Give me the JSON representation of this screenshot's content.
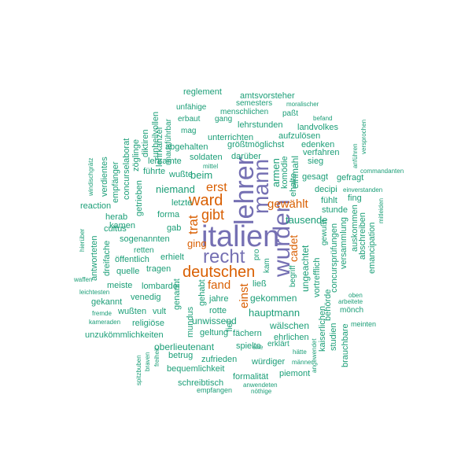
{
  "colors": {
    "purple": "#7570b3",
    "orange": "#d95f02",
    "teal": "#1b9e77"
  },
  "words": [
    {
      "text": "italien",
      "color": "purple"
    },
    {
      "text": "lehrer",
      "color": "purple"
    },
    {
      "text": "wurden",
      "color": "purple"
    },
    {
      "text": "mann",
      "color": "purple"
    },
    {
      "text": "recht",
      "color": "purple"
    },
    {
      "text": "ward",
      "color": "orange"
    },
    {
      "text": "deutschen",
      "color": "orange"
    },
    {
      "text": "gibt",
      "color": "orange"
    },
    {
      "text": "trat",
      "color": "orange"
    },
    {
      "text": "erst",
      "color": "orange"
    },
    {
      "text": "gewählt",
      "color": "orange"
    },
    {
      "text": "fand",
      "color": "orange"
    },
    {
      "text": "einst",
      "color": "orange"
    },
    {
      "text": "cadet",
      "color": "orange"
    },
    {
      "text": "ging",
      "color": "orange"
    },
    {
      "text": "reglement",
      "color": "teal"
    },
    {
      "text": "amtsvorsteher",
      "color": "teal"
    },
    {
      "text": "semesters",
      "color": "teal"
    },
    {
      "text": "moralischer",
      "color": "teal"
    },
    {
      "text": "unfähige",
      "color": "teal"
    },
    {
      "text": "menschlichen",
      "color": "teal"
    },
    {
      "text": "paßt",
      "color": "teal"
    },
    {
      "text": "erbaut",
      "color": "teal"
    },
    {
      "text": "gang",
      "color": "teal"
    },
    {
      "text": "befand",
      "color": "teal"
    },
    {
      "text": "lehrstunden",
      "color": "teal"
    },
    {
      "text": "landvolkes",
      "color": "teal"
    },
    {
      "text": "mag",
      "color": "teal"
    },
    {
      "text": "aufzulösen",
      "color": "teal"
    },
    {
      "text": "unterrichten",
      "color": "teal"
    },
    {
      "text": "abgehalten",
      "color": "teal"
    },
    {
      "text": "größtmöglichst",
      "color": "teal"
    },
    {
      "text": "edenken",
      "color": "teal"
    },
    {
      "text": "lehramte",
      "color": "teal"
    },
    {
      "text": "verfahren",
      "color": "teal"
    },
    {
      "text": "soldaten",
      "color": "teal"
    },
    {
      "text": "darüber",
      "color": "teal"
    },
    {
      "text": "sieg",
      "color": "teal"
    },
    {
      "text": "mittel",
      "color": "teal"
    },
    {
      "text": "führte",
      "color": "teal"
    },
    {
      "text": "wußte",
      "color": "teal"
    },
    {
      "text": "beim",
      "color": "teal"
    },
    {
      "text": "niemand",
      "color": "teal"
    },
    {
      "text": "armen",
      "color": "teal"
    },
    {
      "text": "komödie",
      "color": "teal"
    },
    {
      "text": "einmahl",
      "color": "teal"
    },
    {
      "text": "ehalte",
      "color": "teal"
    },
    {
      "text": "decipi",
      "color": "teal"
    },
    {
      "text": "einverstanden",
      "color": "teal"
    },
    {
      "text": "gesagt",
      "color": "teal"
    },
    {
      "text": "gefragt",
      "color": "teal"
    },
    {
      "text": "fing",
      "color": "teal"
    },
    {
      "text": "letzte",
      "color": "teal"
    },
    {
      "text": "reaction",
      "color": "teal"
    },
    {
      "text": "forma",
      "color": "teal"
    },
    {
      "text": "herab",
      "color": "teal"
    },
    {
      "text": "tausende",
      "color": "teal"
    },
    {
      "text": "fühlt",
      "color": "teal"
    },
    {
      "text": "stunde",
      "color": "teal"
    },
    {
      "text": "gab",
      "color": "teal"
    },
    {
      "text": "kamen",
      "color": "teal"
    },
    {
      "text": "cultus",
      "color": "teal"
    },
    {
      "text": "sogenannten",
      "color": "teal"
    },
    {
      "text": "retten",
      "color": "teal"
    },
    {
      "text": "erhielt",
      "color": "teal"
    },
    {
      "text": "öffentlich",
      "color": "teal"
    },
    {
      "text": "quelle",
      "color": "teal"
    },
    {
      "text": "tragen",
      "color": "teal"
    },
    {
      "text": "meiste",
      "color": "teal"
    },
    {
      "text": "lombardei",
      "color": "teal"
    },
    {
      "text": "venedig",
      "color": "teal"
    },
    {
      "text": "gekannt",
      "color": "teal"
    },
    {
      "text": "wußten",
      "color": "teal"
    },
    {
      "text": "vult",
      "color": "teal"
    },
    {
      "text": "religiöse",
      "color": "teal"
    },
    {
      "text": "unzukömmlichkeiten",
      "color": "teal"
    },
    {
      "text": "oberlieutenant",
      "color": "teal"
    },
    {
      "text": "betrug",
      "color": "teal"
    },
    {
      "text": "bequemlichkeit",
      "color": "teal"
    },
    {
      "text": "schreibtisch",
      "color": "teal"
    },
    {
      "text": "empfangen",
      "color": "teal"
    },
    {
      "text": "hauptmann",
      "color": "teal"
    },
    {
      "text": "gekommen",
      "color": "teal"
    },
    {
      "text": "jahre",
      "color": "teal"
    },
    {
      "text": "rotte",
      "color": "teal"
    },
    {
      "text": "unwissend",
      "color": "teal"
    },
    {
      "text": "wälschen",
      "color": "teal"
    },
    {
      "text": "geltung",
      "color": "teal"
    },
    {
      "text": "fächern",
      "color": "teal"
    },
    {
      "text": "spielte",
      "color": "teal"
    },
    {
      "text": "erklärt",
      "color": "teal"
    },
    {
      "text": "ehrlichen",
      "color": "teal"
    },
    {
      "text": "zufrieden",
      "color": "teal"
    },
    {
      "text": "würdiger",
      "color": "teal"
    },
    {
      "text": "piemont",
      "color": "teal"
    },
    {
      "text": "formalität",
      "color": "teal"
    },
    {
      "text": "anwendeten",
      "color": "teal"
    },
    {
      "text": "nöthige",
      "color": "teal"
    },
    {
      "text": "ehe",
      "color": "teal"
    },
    {
      "text": "hätte",
      "color": "teal"
    },
    {
      "text": "männer",
      "color": "teal"
    },
    {
      "text": "ließ",
      "color": "teal"
    },
    {
      "text": "kam",
      "color": "teal"
    },
    {
      "text": "pro",
      "color": "teal"
    },
    {
      "text": "oben",
      "color": "teal"
    },
    {
      "text": "arbeitete",
      "color": "teal"
    },
    {
      "text": "mönch",
      "color": "teal"
    },
    {
      "text": "meinten",
      "color": "teal"
    },
    {
      "text": "commandanten",
      "color": "teal"
    },
    {
      "text": "anführen",
      "color": "teal"
    },
    {
      "text": "versprochen",
      "color": "teal"
    },
    {
      "text": "mitleiden",
      "color": "teal"
    },
    {
      "text": "auskommen",
      "color": "teal"
    },
    {
      "text": "abschreiben",
      "color": "teal"
    },
    {
      "text": "emancipation",
      "color": "teal"
    },
    {
      "text": "versammlung",
      "color": "teal"
    },
    {
      "text": "concursprüfungen",
      "color": "teal"
    },
    {
      "text": "gewußt",
      "color": "teal"
    },
    {
      "text": "begriff",
      "color": "teal"
    },
    {
      "text": "ungeachtet",
      "color": "teal"
    },
    {
      "text": "vortrefflich",
      "color": "teal"
    },
    {
      "text": "behörde",
      "color": "teal"
    },
    {
      "text": "studien",
      "color": "teal"
    },
    {
      "text": "kaiserlichen",
      "color": "teal"
    },
    {
      "text": "brauchbare",
      "color": "teal"
    },
    {
      "text": "angewendet",
      "color": "teal"
    },
    {
      "text": "spitzbuben",
      "color": "teal"
    },
    {
      "text": "braven",
      "color": "teal"
    },
    {
      "text": "freiheit",
      "color": "teal"
    },
    {
      "text": "fiel",
      "color": "teal"
    },
    {
      "text": "mundus",
      "color": "teal"
    },
    {
      "text": "genannt",
      "color": "teal"
    },
    {
      "text": "gehabt",
      "color": "teal"
    },
    {
      "text": "dreifache",
      "color": "teal"
    },
    {
      "text": "antworteten",
      "color": "teal"
    },
    {
      "text": "hierüber",
      "color": "teal"
    },
    {
      "text": "waffen",
      "color": "teal"
    },
    {
      "text": "leichtesten",
      "color": "teal"
    },
    {
      "text": "fremde",
      "color": "teal"
    },
    {
      "text": "kameraden",
      "color": "teal"
    },
    {
      "text": "windischgrätz",
      "color": "teal"
    },
    {
      "text": "verdientes",
      "color": "teal"
    },
    {
      "text": "empfänger",
      "color": "teal"
    },
    {
      "text": "concurselaborat",
      "color": "teal"
    },
    {
      "text": "getrieben",
      "color": "teal"
    },
    {
      "text": "zöglinge",
      "color": "teal"
    },
    {
      "text": "diktiren",
      "color": "teal"
    },
    {
      "text": "unheilvollen",
      "color": "teal"
    },
    {
      "text": "lehrkanzel",
      "color": "teal"
    },
    {
      "text": "unausführbar",
      "color": "teal"
    }
  ]
}
